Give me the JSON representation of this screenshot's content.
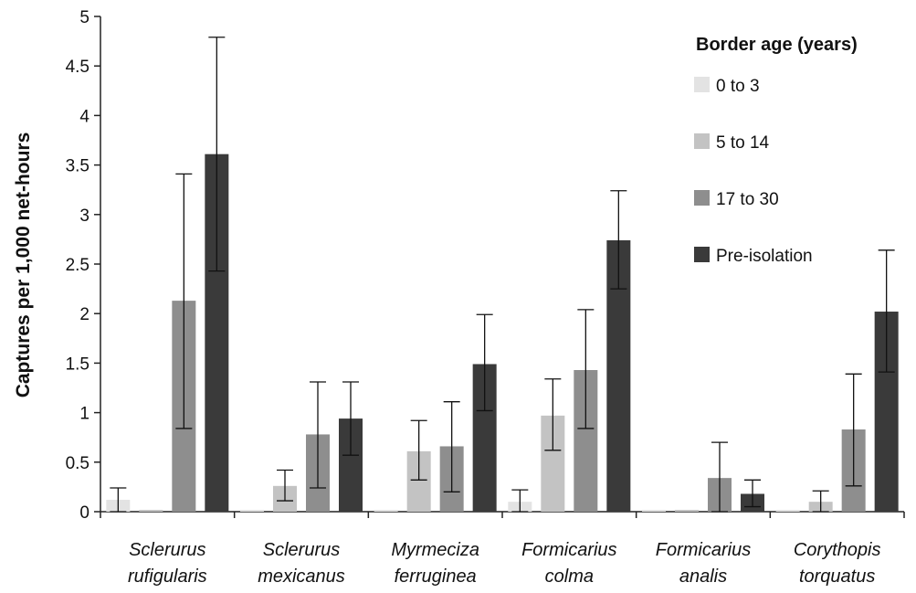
{
  "chart_data": {
    "type": "bar",
    "title": "",
    "xlabel": "",
    "ylabel": "Captures per 1,000 net-hours",
    "ylim": [
      0,
      5
    ],
    "yticks": [
      "0",
      "0.5",
      "1",
      "1.5",
      "2",
      "2.5",
      "3",
      "3.5",
      "4",
      "4.5",
      "5"
    ],
    "grid": false,
    "legend": {
      "title": "Border age (years)",
      "position": "top-right"
    },
    "categories": [
      [
        "Sclerurus",
        "rufigularis"
      ],
      [
        "Sclerurus",
        "mexicanus"
      ],
      [
        "Myrmeciza",
        "ferruginea"
      ],
      [
        "Formicarius",
        "colma"
      ],
      [
        "Formicarius",
        "analis"
      ],
      [
        "Corythopis",
        "torquatus"
      ]
    ],
    "series": [
      {
        "name": "0 to 3",
        "color": "#e3e3e3",
        "values": [
          0.12,
          0.0,
          0.0,
          0.1,
          0.0,
          0.0
        ],
        "err_high": [
          0.24,
          0.0,
          0.0,
          0.22,
          0.0,
          0.0
        ],
        "err_low": [
          0.0,
          0.0,
          0.0,
          0.0,
          0.0,
          0.0
        ]
      },
      {
        "name": "5 to 14",
        "color": "#c3c3c3",
        "values": [
          0.0,
          0.26,
          0.61,
          0.97,
          0.0,
          0.1
        ],
        "err_high": [
          0.0,
          0.42,
          0.92,
          1.34,
          0.0,
          0.21
        ],
        "err_low": [
          0.0,
          0.11,
          0.32,
          0.62,
          0.0,
          0.0
        ]
      },
      {
        "name": "17 to 30",
        "color": "#8e8e8e",
        "values": [
          2.13,
          0.78,
          0.66,
          1.43,
          0.34,
          0.83
        ],
        "err_high": [
          3.41,
          1.31,
          1.11,
          2.04,
          0.7,
          1.39
        ],
        "err_low": [
          0.84,
          0.24,
          0.2,
          0.84,
          0.0,
          0.26
        ]
      },
      {
        "name": "Pre-isolation",
        "color": "#3a3a3a",
        "values": [
          3.61,
          0.94,
          1.49,
          2.74,
          0.18,
          2.02
        ],
        "err_high": [
          4.79,
          1.31,
          1.99,
          3.24,
          0.32,
          2.64
        ],
        "err_low": [
          2.43,
          0.57,
          1.02,
          2.25,
          0.05,
          1.41
        ]
      }
    ]
  }
}
